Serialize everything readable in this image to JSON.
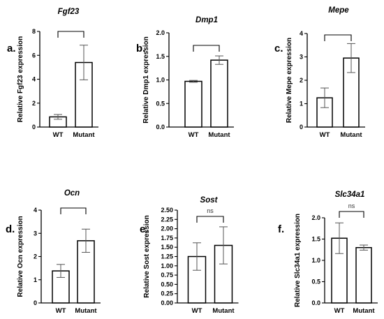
{
  "chart_data": [
    {
      "type": "bar",
      "panel_label": "a.",
      "title": "Fgf23",
      "ylabel": "Relative Fgf23 expression",
      "categories": [
        "WT",
        "Mutant"
      ],
      "values": [
        0.85,
        5.4
      ],
      "error": [
        0.2,
        1.45
      ],
      "ylim": [
        0,
        8
      ],
      "yticks": [
        "0",
        "2",
        "4",
        "6",
        "8"
      ],
      "significance": ""
    },
    {
      "type": "bar",
      "panel_label": "b.",
      "title": "Dmp1",
      "ylabel": "Relative Dmp1 expression",
      "categories": [
        "WT",
        "Mutant"
      ],
      "values": [
        0.97,
        1.42
      ],
      "error": [
        0.02,
        0.09
      ],
      "ylim": [
        0,
        2
      ],
      "yticks": [
        "0.0",
        "0.5",
        "1.0",
        "1.5",
        "2.0"
      ],
      "significance": ""
    },
    {
      "type": "bar",
      "panel_label": "c.",
      "title": "Mepe",
      "ylabel": "Relative Mepe expression",
      "categories": [
        "WT",
        "Mutant"
      ],
      "values": [
        1.25,
        2.95
      ],
      "error": [
        0.42,
        0.62
      ],
      "ylim": [
        0,
        4
      ],
      "yticks": [
        "0",
        "1",
        "2",
        "3",
        "4"
      ],
      "significance": ""
    },
    {
      "type": "bar",
      "panel_label": "d.",
      "title": "Ocn",
      "ylabel": "Relative Ocn expression",
      "categories": [
        "WT",
        "Mutant"
      ],
      "values": [
        1.38,
        2.68
      ],
      "error": [
        0.28,
        0.5
      ],
      "ylim": [
        0,
        4
      ],
      "yticks": [
        "0",
        "1",
        "2",
        "3",
        "4"
      ],
      "significance": ""
    },
    {
      "type": "bar",
      "panel_label": "e.",
      "title": "Sost",
      "ylabel": "Relative Sost expression",
      "categories": [
        "WT",
        "Mutant"
      ],
      "values": [
        1.25,
        1.55
      ],
      "error": [
        0.37,
        0.5
      ],
      "ylim": [
        0,
        2.5
      ],
      "yticks": [
        "0.00",
        "0.25",
        "0.50",
        "0.75",
        "1.00",
        "1.25",
        "1.50",
        "1.75",
        "2.00",
        "2.25",
        "2.50"
      ],
      "significance": "ns"
    },
    {
      "type": "bar",
      "panel_label": "f.",
      "title": "Slc34a1",
      "ylabel": "Relative Slc34a1 expression",
      "categories": [
        "WT",
        "Mutant"
      ],
      "values": [
        1.52,
        1.3
      ],
      "error": [
        0.36,
        0.06
      ],
      "ylim": [
        0,
        2
      ],
      "yticks": [
        "0.0",
        "0.5",
        "1.0",
        "1.5",
        "2.0"
      ],
      "significance": "ns"
    }
  ]
}
